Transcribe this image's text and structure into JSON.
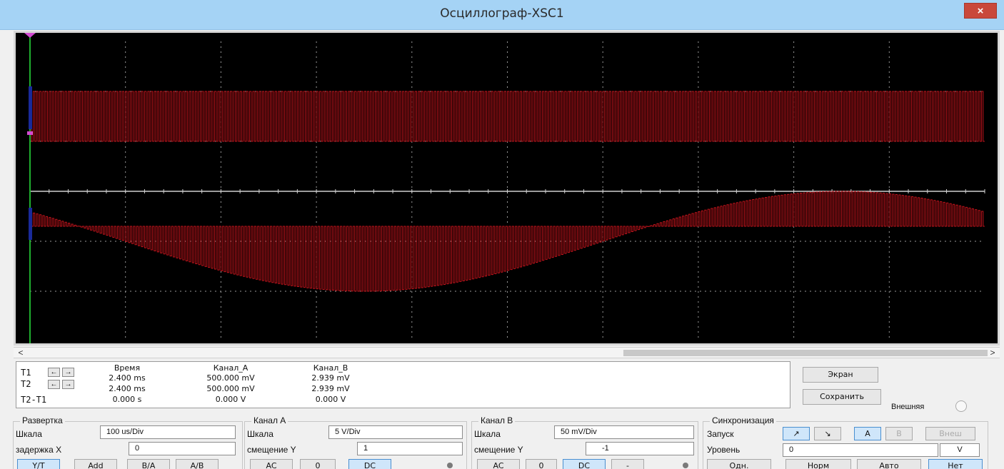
{
  "window": {
    "title": "Осциллограф-XSC1",
    "close_glyph": "×"
  },
  "scroll": {
    "left_glyph": "<",
    "right_glyph": ">"
  },
  "trace_color": "#c1131b",
  "chart_data": {
    "type": "line",
    "divisions": {
      "x": 10,
      "y": 6
    },
    "series": [
      {
        "channel": "A",
        "kind": "square-wave",
        "high_div": 2.0,
        "low_div": 1.0
      },
      {
        "channel": "B",
        "kind": "modulated-square",
        "envelope_period_div": 10,
        "mid_div": -1.0,
        "amp_div": 1.0,
        "base_div": -0.7,
        "start_div": -0.4
      }
    ]
  },
  "cursors": {
    "headers": [
      "Время",
      "Канал_A",
      "Канал_B"
    ],
    "rows": [
      {
        "label": "T1",
        "time": "2.400 ms",
        "a": "500.000 mV",
        "b": "2.939 mV"
      },
      {
        "label": "T2",
        "time": "2.400 ms",
        "a": "500.000 mV",
        "b": "2.939 mV"
      },
      {
        "label": "T2-T1",
        "time": "0.000 s",
        "a": "0.000 V",
        "b": "0.000 V"
      }
    ],
    "arrow_left": "←",
    "arrow_right": "→"
  },
  "right_buttons": {
    "screen": "Экран",
    "save": "Сохранить",
    "external": "Внешняя"
  },
  "sweep": {
    "title": "Развертка",
    "scale_label": "Шкала",
    "scale_value": "100 us/Div",
    "delay_label": "задержка X",
    "delay_value": "0",
    "modes": [
      "Y/T",
      "Add",
      "B/A",
      "A/B"
    ]
  },
  "channel_a": {
    "title": "Канал A",
    "scale_label": "Шкала",
    "scale_value": "5  V/Div",
    "offset_label": "смещение Y",
    "offset_value": "1",
    "coupling": [
      "AC",
      "0",
      "DC"
    ]
  },
  "channel_b": {
    "title": "Канал B",
    "scale_label": "Шкала",
    "scale_value": "50 mV/Div",
    "offset_label": "смещение Y",
    "offset_value": "-1",
    "coupling": [
      "AC",
      "0",
      "DC",
      "-"
    ]
  },
  "sync": {
    "title": "Синхронизация",
    "start_label": "Запуск",
    "edges": [
      "↗",
      "↘"
    ],
    "sources": [
      "A",
      "B",
      "Внеш"
    ],
    "level_label": "Уровень",
    "level_value": "0",
    "level_unit": "V",
    "modes": [
      "Одн.",
      "Норм",
      "Авто",
      "Нет"
    ]
  }
}
